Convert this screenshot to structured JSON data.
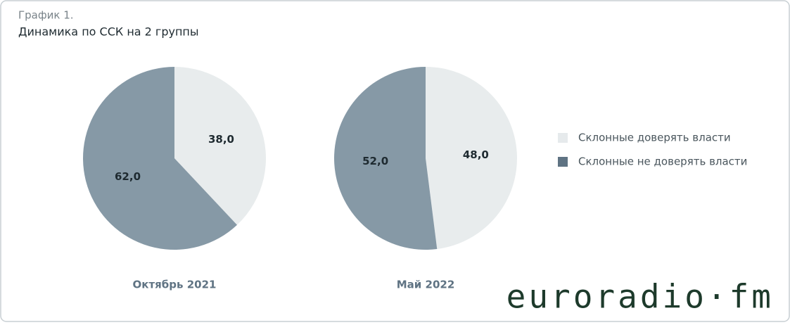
{
  "header": {
    "kicker": "График 1.",
    "title": "Динамика по ССК на 2 группы"
  },
  "legend": [
    {
      "name": "Склонные доверять власти",
      "color": "#e6eaec"
    },
    {
      "name": "Склонные не доверять власти",
      "color": "#5f7383"
    }
  ],
  "chart_data": [
    {
      "type": "pie",
      "title": "Октябрь 2021",
      "values": [
        38,
        62
      ],
      "value_labels": [
        "38,0",
        "62,0"
      ],
      "colors": [
        "#e8eced",
        "#8699a6"
      ]
    },
    {
      "type": "pie",
      "title": "Май 2022",
      "values": [
        48,
        52
      ],
      "value_labels": [
        "48,0",
        "52,0"
      ],
      "colors": [
        "#e8eced",
        "#8699a6"
      ]
    }
  ],
  "logo": "euroradio·fm"
}
